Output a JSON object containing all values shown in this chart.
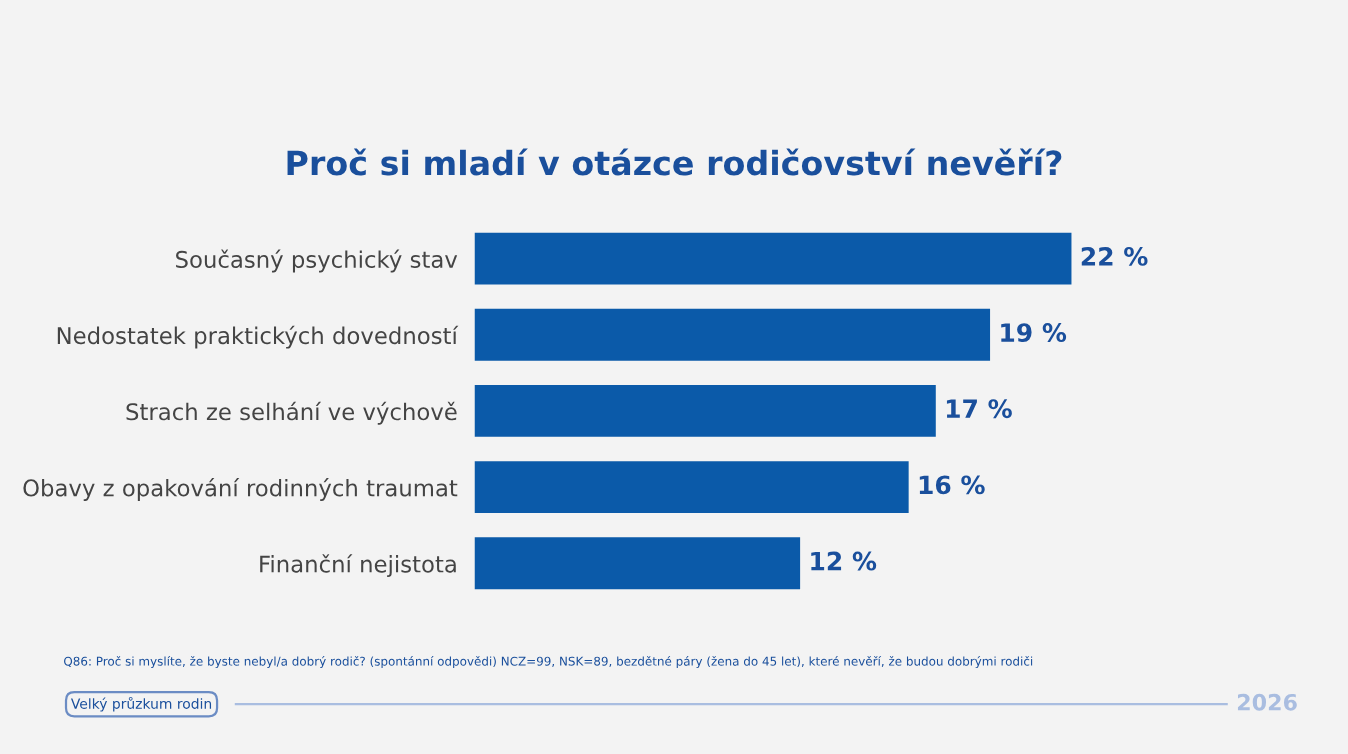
{
  "chart_data": {
    "type": "bar",
    "orientation": "horizontal",
    "title": "Proč si mladí v otázce rodičovství nevěří?",
    "categories": [
      "Současný psychický stav",
      "Nedostatek praktických dovedností",
      "Strach ze selhání ve výchově",
      "Obavy z opakování rodinných traumat",
      "Finanční nejistota"
    ],
    "values": [
      22,
      19,
      17,
      16,
      12
    ],
    "value_labels": [
      "22 %",
      "19 %",
      "17 %",
      "16 %",
      "12 %"
    ],
    "color": "#0b5aa9",
    "grid": false,
    "legend": false,
    "annotations": [
      "Q86: Proč si myslíte, že byste nebyl/a dobrý rodič? (spontánní odpovědi) NCZ=99, NSK=89, bezdětné páry (žena do 45 let), které nevěří, že budou dobrými rodiči",
      "Velký průzkum rodin",
      "2026"
    ]
  }
}
